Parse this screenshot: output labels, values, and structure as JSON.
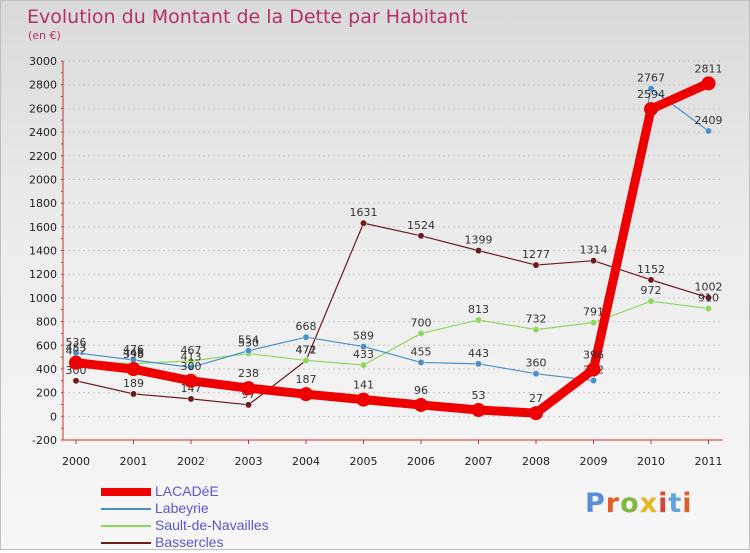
{
  "header": {
    "title": "Evolution du Montant de la Dette par Habitant",
    "subtitle": "(en €)"
  },
  "brand": {
    "name": "Proxiti",
    "letter_colors": [
      "#5a8fd6",
      "#e0602a",
      "#7fb843",
      "#e4b826",
      "#d9443b",
      "#62a3e0",
      "#e0602a"
    ]
  },
  "chart_data": {
    "type": "line",
    "title": "Evolution du Montant de la Dette par Habitant",
    "subtitle": "(en €)",
    "xlabel": "",
    "ylabel": "",
    "x": [
      "2000",
      "2001",
      "2002",
      "2003",
      "2004",
      "2005",
      "2006",
      "2007",
      "2008",
      "2009",
      "2010",
      "2011"
    ],
    "ylim": [
      -200,
      3000
    ],
    "yticks": [
      -200,
      0,
      200,
      400,
      600,
      800,
      1000,
      1200,
      1400,
      1600,
      1800,
      2000,
      2200,
      2400,
      2600,
      2800,
      3000
    ],
    "grid": "horizontal dashed",
    "legend_position": "bottom-left",
    "series": [
      {
        "name": "LACADéE",
        "color": "#ee0000",
        "values": [
          453,
          398,
          300,
          238,
          187,
          141,
          96,
          53,
          27,
          396,
          2594,
          2811
        ]
      },
      {
        "name": "Labeyrie",
        "color": "#4a8fc9",
        "values": [
          536,
          476,
          413,
          554,
          668,
          589,
          455,
          443,
          360,
          302,
          2767,
          2409
        ]
      },
      {
        "name": "Sault-de-Navailles",
        "color": "#8fd65f",
        "values": [
          462,
          446,
          467,
          530,
          472,
          433,
          700,
          813,
          732,
          791,
          972,
          910
        ]
      },
      {
        "name": "Bassercles",
        "color": "#6e1a1a",
        "values": [
          300,
          189,
          147,
          97,
          471,
          1631,
          1524,
          1399,
          1277,
          1314,
          1152,
          1002
        ]
      }
    ]
  }
}
